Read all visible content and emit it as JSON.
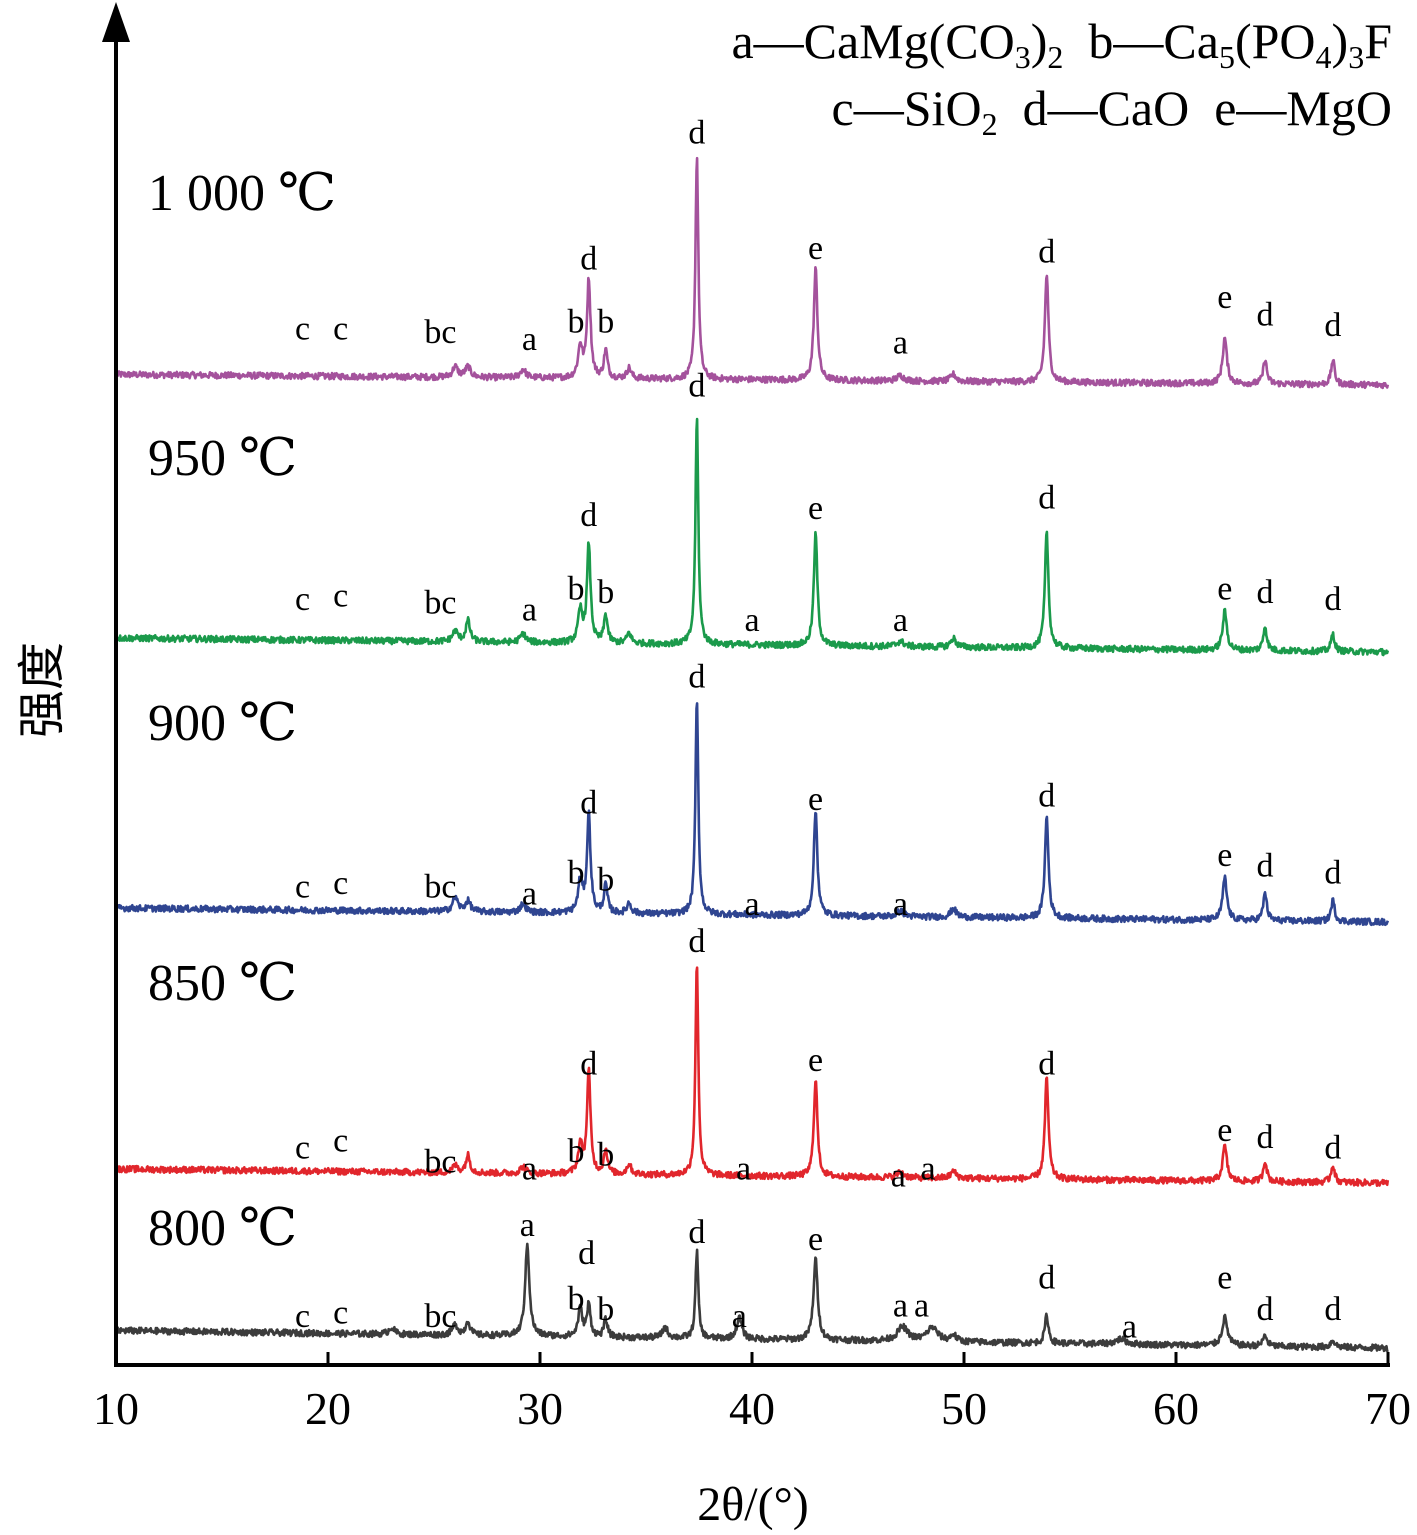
{
  "chart_data": {
    "type": "line",
    "xlabel": "2θ/(°)",
    "ylabel": "强度",
    "xlim": [
      10,
      70
    ],
    "xticks": [
      10,
      20,
      30,
      40,
      50,
      60,
      70
    ],
    "grid": false,
    "legend": {
      "placement": "top-right",
      "lines": [
        [
          {
            "key": "a",
            "sep": "—",
            "formula": [
              [
                "CaMg(CO",
                ""
              ],
              [
                "3",
                "sub"
              ],
              [
                ")",
                ""
              ],
              [
                "2",
                "sub"
              ]
            ]
          },
          {
            "key": "b",
            "sep": "—",
            "formula": [
              [
                "Ca",
                ""
              ],
              [
                "5",
                "sub"
              ],
              [
                "(PO",
                ""
              ],
              [
                "4",
                "sub"
              ],
              [
                ")",
                ""
              ],
              [
                "3",
                "sub"
              ],
              [
                "F",
                ""
              ]
            ]
          }
        ],
        [
          {
            "key": "c",
            "sep": "—",
            "formula": [
              [
                "SiO",
                ""
              ],
              [
                "2",
                "sub"
              ]
            ]
          },
          {
            "key": "d",
            "sep": "—",
            "formula": [
              [
                "CaO",
                ""
              ]
            ]
          },
          {
            "key": "e",
            "sep": "—",
            "formula": [
              [
                "MgO",
                ""
              ]
            ]
          }
        ]
      ]
    },
    "series": [
      {
        "name": "1 000 ℃",
        "color": "#a4529c",
        "baseline": [
          0.0,
          0.3
        ],
        "peaks": [
          {
            "x": 26.0,
            "h": 0.3,
            "w": 0.15
          },
          {
            "x": 26.6,
            "h": 0.3,
            "w": 0.15
          },
          {
            "x": 29.2,
            "h": 0.25,
            "w": 0.15
          },
          {
            "x": 31.9,
            "h": 0.9,
            "w": 0.12
          },
          {
            "x": 32.3,
            "h": 2.8,
            "w": 0.1
          },
          {
            "x": 33.1,
            "h": 0.8,
            "w": 0.1
          },
          {
            "x": 34.2,
            "h": 0.3,
            "w": 0.12
          },
          {
            "x": 37.4,
            "h": 6.4,
            "w": 0.08
          },
          {
            "x": 43.0,
            "h": 3.2,
            "w": 0.1
          },
          {
            "x": 47.0,
            "h": 0.15,
            "w": 0.2
          },
          {
            "x": 49.5,
            "h": 0.2,
            "w": 0.15
          },
          {
            "x": 53.9,
            "h": 3.1,
            "w": 0.1
          },
          {
            "x": 62.3,
            "h": 1.3,
            "w": 0.12
          },
          {
            "x": 64.2,
            "h": 0.7,
            "w": 0.1
          },
          {
            "x": 67.4,
            "h": 0.7,
            "w": 0.1
          }
        ],
        "annotations": [
          {
            "t": "c",
            "x": 18.8,
            "y": 1.3
          },
          {
            "t": "c",
            "x": 20.6,
            "y": 1.3
          },
          {
            "t": "bc",
            "x": 25.3,
            "y": 1.2
          },
          {
            "t": "a",
            "x": 29.5,
            "y": 1.0
          },
          {
            "t": "b",
            "x": 31.7,
            "y": 1.5
          },
          {
            "t": "d",
            "x": 32.3,
            "y": 3.3
          },
          {
            "t": "b",
            "x": 33.1,
            "y": 1.5
          },
          {
            "t": "d",
            "x": 37.4,
            "y": 6.9
          },
          {
            "t": "e",
            "x": 43.0,
            "y": 3.6
          },
          {
            "t": "a",
            "x": 47.0,
            "y": 0.9
          },
          {
            "t": "d",
            "x": 53.9,
            "y": 3.5
          },
          {
            "t": "e",
            "x": 62.3,
            "y": 2.2
          },
          {
            "t": "d",
            "x": 64.2,
            "y": 1.7
          },
          {
            "t": "d",
            "x": 67.4,
            "y": 1.4
          }
        ]
      },
      {
        "name": "950 ℃",
        "color": "#1b9a4b",
        "baseline": [
          0.0,
          0.4
        ],
        "peaks": [
          {
            "x": 26.0,
            "h": 0.3,
            "w": 0.15
          },
          {
            "x": 26.6,
            "h": 0.6,
            "w": 0.12
          },
          {
            "x": 29.2,
            "h": 0.25,
            "w": 0.15
          },
          {
            "x": 31.9,
            "h": 0.9,
            "w": 0.12
          },
          {
            "x": 32.3,
            "h": 2.8,
            "w": 0.1
          },
          {
            "x": 33.1,
            "h": 0.8,
            "w": 0.1
          },
          {
            "x": 34.2,
            "h": 0.3,
            "w": 0.12
          },
          {
            "x": 37.4,
            "h": 6.5,
            "w": 0.08
          },
          {
            "x": 43.0,
            "h": 3.2,
            "w": 0.1
          },
          {
            "x": 47.0,
            "h": 0.15,
            "w": 0.2
          },
          {
            "x": 49.5,
            "h": 0.25,
            "w": 0.15
          },
          {
            "x": 53.9,
            "h": 3.3,
            "w": 0.1
          },
          {
            "x": 62.3,
            "h": 1.1,
            "w": 0.12
          },
          {
            "x": 64.2,
            "h": 0.7,
            "w": 0.1
          },
          {
            "x": 67.4,
            "h": 0.5,
            "w": 0.1
          }
        ],
        "annotations": [
          {
            "t": "c",
            "x": 18.8,
            "y": 1.2
          },
          {
            "t": "c",
            "x": 20.6,
            "y": 1.3
          },
          {
            "t": "bc",
            "x": 25.3,
            "y": 1.1
          },
          {
            "t": "a",
            "x": 29.5,
            "y": 0.9
          },
          {
            "t": "b",
            "x": 31.7,
            "y": 1.5
          },
          {
            "t": "d",
            "x": 32.3,
            "y": 3.6
          },
          {
            "t": "b",
            "x": 33.1,
            "y": 1.4
          },
          {
            "t": "d",
            "x": 37.4,
            "y": 7.3
          },
          {
            "t": "a",
            "x": 40.0,
            "y": 0.6
          },
          {
            "t": "e",
            "x": 43.0,
            "y": 3.8
          },
          {
            "t": "a",
            "x": 47.0,
            "y": 0.6
          },
          {
            "t": "d",
            "x": 53.9,
            "y": 4.1
          },
          {
            "t": "e",
            "x": 62.3,
            "y": 1.5
          },
          {
            "t": "d",
            "x": 64.2,
            "y": 1.4
          },
          {
            "t": "d",
            "x": 67.4,
            "y": 1.2
          }
        ]
      },
      {
        "name": "900 ℃",
        "color": "#2f4591",
        "baseline": [
          0.0,
          0.4
        ],
        "peaks": [
          {
            "x": 26.0,
            "h": 0.4,
            "w": 0.15
          },
          {
            "x": 26.6,
            "h": 0.3,
            "w": 0.15
          },
          {
            "x": 29.2,
            "h": 0.25,
            "w": 0.15
          },
          {
            "x": 31.9,
            "h": 0.9,
            "w": 0.12
          },
          {
            "x": 32.3,
            "h": 2.8,
            "w": 0.1
          },
          {
            "x": 33.1,
            "h": 0.8,
            "w": 0.1
          },
          {
            "x": 34.2,
            "h": 0.3,
            "w": 0.12
          },
          {
            "x": 37.4,
            "h": 6.2,
            "w": 0.08
          },
          {
            "x": 43.0,
            "h": 3.0,
            "w": 0.1
          },
          {
            "x": 47.0,
            "h": 0.15,
            "w": 0.2
          },
          {
            "x": 49.5,
            "h": 0.25,
            "w": 0.15
          },
          {
            "x": 53.9,
            "h": 2.9,
            "w": 0.1
          },
          {
            "x": 62.3,
            "h": 1.2,
            "w": 0.12
          },
          {
            "x": 64.2,
            "h": 0.8,
            "w": 0.1
          },
          {
            "x": 67.4,
            "h": 0.6,
            "w": 0.1
          }
        ],
        "annotations": [
          {
            "t": "c",
            "x": 18.8,
            "y": 0.7
          },
          {
            "t": "c",
            "x": 20.6,
            "y": 0.8
          },
          {
            "t": "bc",
            "x": 25.3,
            "y": 0.7
          },
          {
            "t": "a",
            "x": 29.5,
            "y": 0.5
          },
          {
            "t": "b",
            "x": 31.7,
            "y": 1.1
          },
          {
            "t": "d",
            "x": 32.3,
            "y": 3.1
          },
          {
            "t": "b",
            "x": 33.1,
            "y": 0.9
          },
          {
            "t": "d",
            "x": 37.4,
            "y": 6.7
          },
          {
            "t": "a",
            "x": 40.0,
            "y": 0.2
          },
          {
            "t": "e",
            "x": 43.0,
            "y": 3.2
          },
          {
            "t": "a",
            "x": 47.0,
            "y": 0.2
          },
          {
            "t": "d",
            "x": 53.9,
            "y": 3.3
          },
          {
            "t": "e",
            "x": 62.3,
            "y": 1.6
          },
          {
            "t": "d",
            "x": 64.2,
            "y": 1.3
          },
          {
            "t": "d",
            "x": 67.4,
            "y": 1.1
          }
        ]
      },
      {
        "name": "850 ℃",
        "color": "#e1262c",
        "baseline": [
          0.0,
          0.4
        ],
        "peaks": [
          {
            "x": 26.0,
            "h": 0.2,
            "w": 0.15
          },
          {
            "x": 26.6,
            "h": 0.5,
            "w": 0.12
          },
          {
            "x": 29.2,
            "h": 0.2,
            "w": 0.15
          },
          {
            "x": 31.9,
            "h": 0.8,
            "w": 0.12
          },
          {
            "x": 32.3,
            "h": 2.9,
            "w": 0.1
          },
          {
            "x": 33.1,
            "h": 0.7,
            "w": 0.1
          },
          {
            "x": 34.2,
            "h": 0.3,
            "w": 0.12
          },
          {
            "x": 37.4,
            "h": 6.1,
            "w": 0.08
          },
          {
            "x": 43.0,
            "h": 2.8,
            "w": 0.1
          },
          {
            "x": 47.0,
            "h": 0.15,
            "w": 0.2
          },
          {
            "x": 49.5,
            "h": 0.2,
            "w": 0.15
          },
          {
            "x": 53.9,
            "h": 2.9,
            "w": 0.1
          },
          {
            "x": 62.3,
            "h": 1.0,
            "w": 0.12
          },
          {
            "x": 64.2,
            "h": 0.6,
            "w": 0.1
          },
          {
            "x": 67.4,
            "h": 0.5,
            "w": 0.1
          }
        ],
        "annotations": [
          {
            "t": "c",
            "x": 18.8,
            "y": 0.7
          },
          {
            "t": "c",
            "x": 20.6,
            "y": 0.9
          },
          {
            "t": "bc",
            "x": 25.3,
            "y": 0.3
          },
          {
            "t": "a",
            "x": 29.5,
            "y": 0.1
          },
          {
            "t": "b",
            "x": 31.7,
            "y": 0.6
          },
          {
            "t": "d",
            "x": 32.3,
            "y": 3.1
          },
          {
            "t": "b",
            "x": 33.1,
            "y": 0.5
          },
          {
            "t": "d",
            "x": 37.4,
            "y": 6.6
          },
          {
            "t": "a",
            "x": 39.6,
            "y": 0.1
          },
          {
            "t": "e",
            "x": 43.0,
            "y": 3.2
          },
          {
            "t": "a",
            "x": 46.9,
            "y": -0.1
          },
          {
            "t": "a",
            "x": 48.3,
            "y": 0.1
          },
          {
            "t": "d",
            "x": 53.9,
            "y": 3.1
          },
          {
            "t": "e",
            "x": 62.3,
            "y": 1.2
          },
          {
            "t": "d",
            "x": 64.2,
            "y": 1.0
          },
          {
            "t": "d",
            "x": 67.4,
            "y": 0.7
          }
        ]
      },
      {
        "name": "800 ℃",
        "color": "#3c3c3c",
        "baseline": [
          0.0,
          0.5
        ],
        "peaks": [
          {
            "x": 23.0,
            "h": 0.2,
            "w": 0.15
          },
          {
            "x": 26.0,
            "h": 0.3,
            "w": 0.15
          },
          {
            "x": 26.6,
            "h": 0.4,
            "w": 0.12
          },
          {
            "x": 29.4,
            "h": 2.6,
            "w": 0.12
          },
          {
            "x": 31.9,
            "h": 0.8,
            "w": 0.12
          },
          {
            "x": 32.3,
            "h": 0.9,
            "w": 0.1
          },
          {
            "x": 33.1,
            "h": 0.5,
            "w": 0.1
          },
          {
            "x": 35.9,
            "h": 0.3,
            "w": 0.15
          },
          {
            "x": 37.4,
            "h": 2.5,
            "w": 0.08
          },
          {
            "x": 39.4,
            "h": 0.6,
            "w": 0.15
          },
          {
            "x": 43.0,
            "h": 2.3,
            "w": 0.12
          },
          {
            "x": 47.1,
            "h": 0.4,
            "w": 0.3
          },
          {
            "x": 48.5,
            "h": 0.4,
            "w": 0.3
          },
          {
            "x": 49.5,
            "h": 0.2,
            "w": 0.15
          },
          {
            "x": 53.9,
            "h": 0.8,
            "w": 0.1
          },
          {
            "x": 57.4,
            "h": 0.15,
            "w": 0.3
          },
          {
            "x": 62.3,
            "h": 0.8,
            "w": 0.15
          },
          {
            "x": 64.2,
            "h": 0.3,
            "w": 0.12
          },
          {
            "x": 67.4,
            "h": 0.2,
            "w": 0.12
          }
        ],
        "annotations": [
          {
            "t": "c",
            "x": 18.8,
            "y": 0.6
          },
          {
            "t": "c",
            "x": 20.6,
            "y": 0.7
          },
          {
            "t": "bc",
            "x": 25.3,
            "y": 0.6
          },
          {
            "t": "a",
            "x": 29.4,
            "y": 3.2
          },
          {
            "t": "b",
            "x": 31.7,
            "y": 1.1
          },
          {
            "t": "d",
            "x": 32.2,
            "y": 2.4
          },
          {
            "t": "b",
            "x": 33.1,
            "y": 0.8
          },
          {
            "t": "d",
            "x": 37.4,
            "y": 3.0
          },
          {
            "t": "a",
            "x": 39.4,
            "y": 0.6
          },
          {
            "t": "e",
            "x": 43.0,
            "y": 2.8
          },
          {
            "t": "a",
            "x": 47.0,
            "y": 0.9
          },
          {
            "t": "a",
            "x": 48.0,
            "y": 0.9
          },
          {
            "t": "d",
            "x": 53.9,
            "y": 1.7
          },
          {
            "t": "a",
            "x": 57.8,
            "y": 0.3
          },
          {
            "t": "e",
            "x": 62.3,
            "y": 1.7
          },
          {
            "t": "d",
            "x": 64.2,
            "y": 0.8
          },
          {
            "t": "d",
            "x": 67.4,
            "y": 0.8
          }
        ]
      }
    ]
  }
}
